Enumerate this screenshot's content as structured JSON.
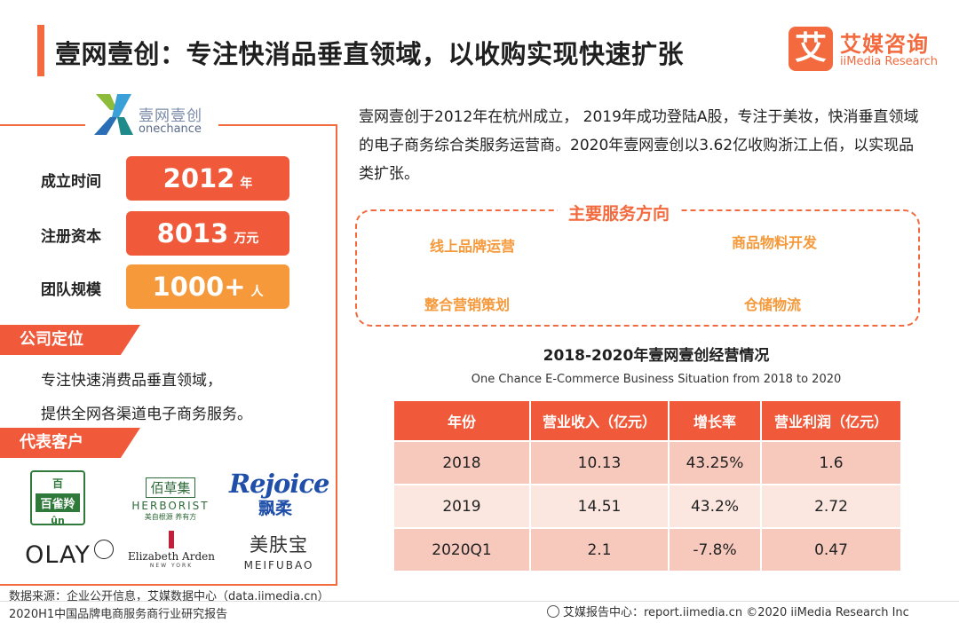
{
  "header": {
    "title": "壹网壹创：专注快消品垂直领域，以收购实现快速扩张",
    "brand_mark": "艾",
    "brand_cn": "艾媒咨询",
    "brand_en": "iiMedia Research"
  },
  "company_logo": {
    "cn": "壹网壹创",
    "en": "onechance"
  },
  "facts": [
    {
      "label": "成立时间",
      "value": "2012",
      "unit": "年"
    },
    {
      "label": "注册资本",
      "value": "8013",
      "unit": "万元"
    },
    {
      "label": "团队规模",
      "value": "1000+",
      "unit": "人"
    }
  ],
  "positioning": {
    "tag": "公司定位",
    "line1": "专注快速消费品垂直领域，",
    "line2": "提供全网各渠道电子商务服务。"
  },
  "clients": {
    "tag": "代表客户",
    "baique": {
      "t1": "百",
      "t2": "百雀羚",
      "t3": "ûn"
    },
    "herborist": {
      "t1": "佰草集",
      "t2": "HERBORIST",
      "t3": "美自根源  养有方"
    },
    "rejoice": {
      "t1": "Rejoice",
      "t2": "飘柔"
    },
    "olay": {
      "t1": "OLAY"
    },
    "arden": {
      "t1": "Elizabeth Arden",
      "t2": "NEW YORK"
    },
    "mfb": {
      "t1": "美肤宝",
      "t2": "MEIFUBAO"
    }
  },
  "intro": "壹网壹创于2012年在杭州成立， 2019年成功登陆A股，专注于美妆，快消垂直领域的电子商务综合类服务运营商。2020年壹网壹创以3.62亿收购浙江上佰，以实现品类扩张。",
  "services": {
    "title": "主要服务方向",
    "items": [
      "线上品牌运营",
      "商品物料开发",
      "整合营销策划",
      "仓储物流"
    ]
  },
  "table": {
    "title": "2018-2020年壹网壹创经营情况",
    "subtitle": "One Chance E-Commerce Business Situation from 2018 to 2020",
    "headers": [
      "年份",
      "营业收入（亿元）",
      "增长率",
      "营业利润（亿元）"
    ],
    "rows": [
      [
        "2018",
        "10.13",
        "43.25%",
        "1.6"
      ],
      [
        "2019",
        "14.51",
        "43.2%",
        "2.72"
      ],
      [
        "2020Q1",
        "2.1",
        "-7.8%",
        "0.47"
      ]
    ]
  },
  "footer": {
    "source1": "数据来源：企业公开信息，艾媒数据中心（data.iimedia.cn）",
    "source2": "2020H1中国品牌电商服务商行业研究报告",
    "right": "艾媒报告中心：report.iimedia.cn   ©2020  iiMedia Research  Inc"
  }
}
